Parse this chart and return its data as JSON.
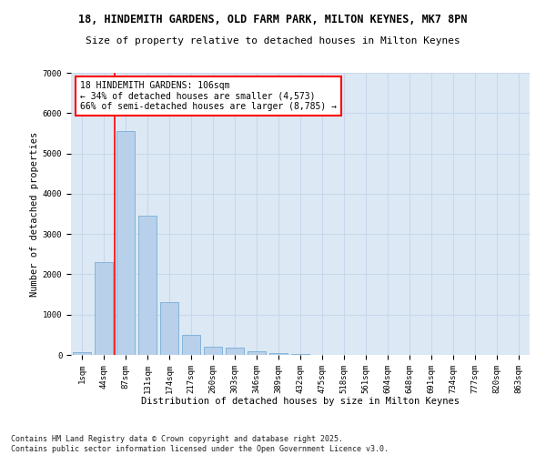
{
  "title_line1": "18, HINDEMITH GARDENS, OLD FARM PARK, MILTON KEYNES, MK7 8PN",
  "title_line2": "Size of property relative to detached houses in Milton Keynes",
  "xlabel": "Distribution of detached houses by size in Milton Keynes",
  "ylabel": "Number of detached properties",
  "background_color": "#dce9f5",
  "bar_color": "#b8d0ea",
  "bar_edge_color": "#7aadd4",
  "categories": [
    "1sqm",
    "44sqm",
    "87sqm",
    "131sqm",
    "174sqm",
    "217sqm",
    "260sqm",
    "303sqm",
    "346sqm",
    "389sqm",
    "432sqm",
    "475sqm",
    "518sqm",
    "561sqm",
    "604sqm",
    "648sqm",
    "691sqm",
    "734sqm",
    "777sqm",
    "820sqm",
    "863sqm"
  ],
  "values": [
    70,
    2300,
    5550,
    3450,
    1320,
    500,
    210,
    175,
    100,
    55,
    30,
    10,
    5,
    2,
    1,
    1,
    0,
    0,
    0,
    0,
    0
  ],
  "ylim": [
    0,
    7000
  ],
  "yticks": [
    0,
    1000,
    2000,
    3000,
    4000,
    5000,
    6000,
    7000
  ],
  "property_label": "18 HINDEMITH GARDENS: 106sqm",
  "pct_smaller": 34,
  "n_smaller": 4573,
  "pct_larger": 66,
  "n_larger": 8785,
  "vline_x_index": 2,
  "footer_line1": "Contains HM Land Registry data © Crown copyright and database right 2025.",
  "footer_line2": "Contains public sector information licensed under the Open Government Licence v3.0.",
  "grid_color": "#c8d8ec",
  "title_fontsize": 8.5,
  "subtitle_fontsize": 8,
  "axis_label_fontsize": 7.5,
  "tick_fontsize": 6.5,
  "annotation_fontsize": 7,
  "footer_fontsize": 6
}
